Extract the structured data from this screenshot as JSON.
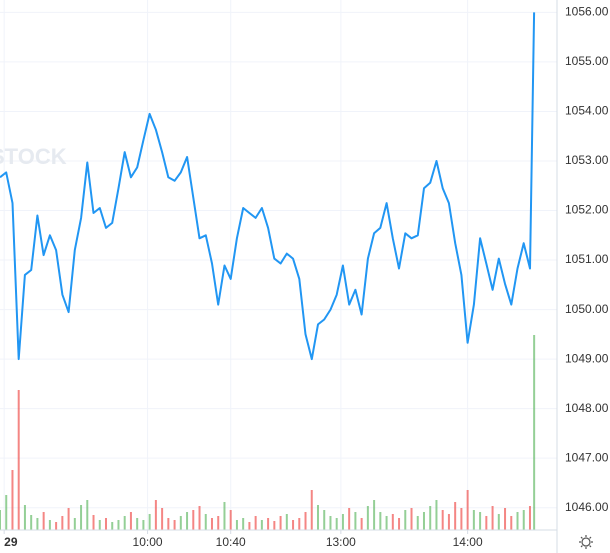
{
  "chart_data": {
    "type": "line",
    "watermark": "STOCK",
    "x": [
      0,
      3,
      6,
      9,
      12,
      15,
      18,
      21,
      24,
      27,
      30,
      33,
      36,
      39,
      42,
      45,
      48,
      51,
      54,
      57,
      60,
      63,
      66,
      69,
      72,
      75,
      78,
      81,
      84,
      87,
      90,
      93,
      96,
      99,
      102,
      105,
      108,
      111,
      114,
      117,
      120,
      123,
      126,
      129,
      132,
      135,
      138,
      141,
      144,
      147,
      150,
      153,
      156,
      159,
      162,
      165,
      168,
      171,
      174,
      177,
      180,
      183,
      186,
      189,
      192,
      195,
      198,
      201,
      204,
      207,
      210,
      213,
      216,
      219,
      222,
      225,
      228,
      231,
      234,
      237,
      240,
      243,
      246,
      249,
      252,
      255,
      257
    ],
    "series": [
      {
        "name": "price",
        "color": "#2196f3",
        "values": [
          1052.67,
          1052.77,
          1052.15,
          1049.0,
          1050.7,
          1050.8,
          1051.9,
          1051.1,
          1051.5,
          1051.2,
          1050.3,
          1049.95,
          1051.2,
          1051.85,
          1052.97,
          1051.95,
          1052.05,
          1051.65,
          1051.75,
          1052.45,
          1053.18,
          1052.67,
          1052.87,
          1053.42,
          1053.95,
          1053.63,
          1053.18,
          1052.67,
          1052.6,
          1052.77,
          1053.08,
          1052.26,
          1051.44,
          1051.5,
          1050.93,
          1050.1,
          1050.89,
          1050.62,
          1051.44,
          1052.05,
          1051.95,
          1051.85,
          1052.05,
          1051.65,
          1051.03,
          1050.93,
          1051.13,
          1051.03,
          1050.62,
          1049.5,
          1049.0,
          1049.7,
          1049.8,
          1050.0,
          1050.3,
          1050.89,
          1050.1,
          1050.4,
          1049.9,
          1051.03,
          1051.54,
          1051.65,
          1052.15,
          1051.44,
          1050.83,
          1051.54,
          1051.44,
          1051.5,
          1052.45,
          1052.56,
          1053.0,
          1052.45,
          1052.15,
          1051.34,
          1050.7,
          1049.33,
          1050.1,
          1051.44,
          1050.93,
          1050.4,
          1051.03,
          1050.52,
          1050.1,
          1050.83,
          1051.34,
          1050.83,
          1056.0
        ]
      },
      {
        "name": "volume",
        "up_color": "#66bb6a",
        "down_color": "#ef5350",
        "values": [
          20,
          35,
          60,
          140,
          25,
          15,
          12,
          18,
          10,
          8,
          14,
          22,
          12,
          25,
          30,
          15,
          10,
          12,
          8,
          10,
          14,
          18,
          12,
          10,
          16,
          30,
          22,
          12,
          10,
          14,
          18,
          20,
          24,
          16,
          12,
          14,
          28,
          20,
          10,
          12,
          8,
          14,
          10,
          12,
          9,
          14,
          16,
          10,
          12,
          18,
          40,
          25,
          20,
          14,
          12,
          16,
          22,
          18,
          12,
          24,
          30,
          18,
          14,
          16,
          12,
          20,
          22,
          14,
          18,
          24,
          30,
          20,
          16,
          28,
          22,
          40,
          20,
          18,
          14,
          24,
          16,
          22,
          14,
          18,
          20,
          24,
          195
        ]
      }
    ],
    "xlim": [
      0,
      268
    ],
    "xticks": [
      {
        "value": 2,
        "label": "29"
      },
      {
        "value": 71,
        "label": "10:00"
      },
      {
        "value": 111,
        "label": "10:40"
      },
      {
        "value": 164,
        "label": "13:00"
      },
      {
        "value": 225,
        "label": "14:00"
      }
    ],
    "ylim": [
      1045.55,
      1056.25
    ],
    "yticks": [
      {
        "value": 1046,
        "label": "1046.00"
      },
      {
        "value": 1047,
        "label": "1047.00"
      },
      {
        "value": 1048,
        "label": "1048.00"
      },
      {
        "value": 1049,
        "label": "1049.00"
      },
      {
        "value": 1050,
        "label": "1050.00"
      },
      {
        "value": 1051,
        "label": "1051.00"
      },
      {
        "value": 1052,
        "label": "1052.00"
      },
      {
        "value": 1053,
        "label": "1053.00"
      },
      {
        "value": 1054,
        "label": "1054.00"
      },
      {
        "value": 1055,
        "label": "1055.00"
      },
      {
        "value": 1056,
        "label": "1056.00"
      }
    ],
    "grid": true
  }
}
